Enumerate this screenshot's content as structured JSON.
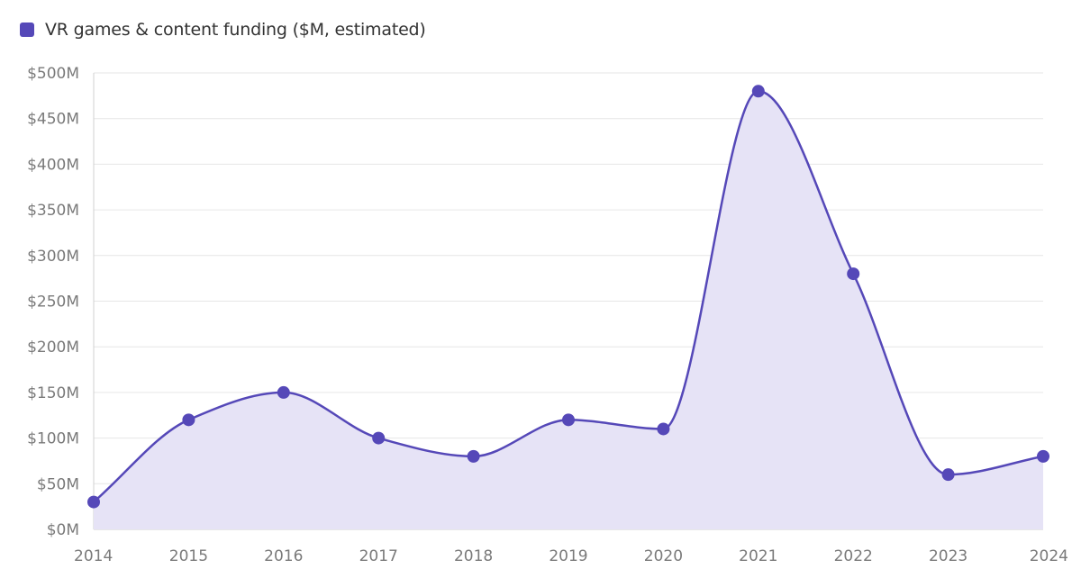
{
  "chart_data": {
    "type": "area",
    "series": [
      {
        "name": "VR games & content funding ($M, estimated)",
        "x": [
          "2014",
          "2015",
          "2016",
          "2017",
          "2018",
          "2019",
          "2020",
          "2021",
          "2022",
          "2023",
          "2024"
        ],
        "values": [
          30,
          120,
          150,
          100,
          80,
          120,
          110,
          480,
          280,
          60,
          80
        ]
      }
    ],
    "y_ticks": [
      "$0M",
      "$50M",
      "$100M",
      "$150M",
      "$200M",
      "$250M",
      "$300M",
      "$350M",
      "$400M",
      "$450M",
      "$500M"
    ],
    "ylim": [
      0,
      500
    ],
    "grid": true,
    "legend": "top-left",
    "colors": {
      "line": "#5548b8",
      "fill": "#e6e3f6",
      "marker": "#5548b8"
    }
  }
}
